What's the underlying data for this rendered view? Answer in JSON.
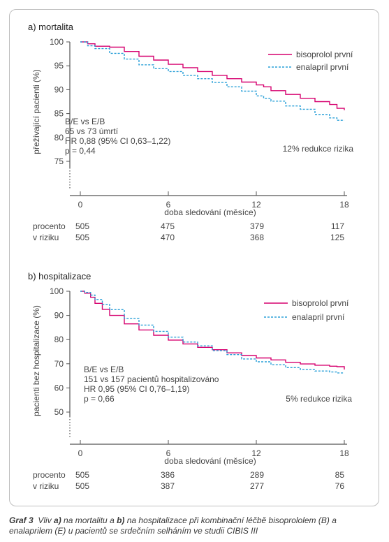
{
  "colors": {
    "bisoprolol": "#d6006f",
    "enalapril": "#2aa0d8",
    "axis": "#555555",
    "frame": "#bfbfbf"
  },
  "caption": {
    "label": "Graf 3",
    "t1": "Vliv ",
    "b1": "a)",
    "t2": " na mortalitu a ",
    "b2": "b)",
    "t3": " na hospitalizace při kombinační léčbě bisoprololem (B) a enalaprilem (E) u pacientů se srdečním selháním ve studii CIBIS III"
  },
  "chart_data": [
    {
      "type": "line",
      "title": "a) mortalita",
      "xlabel": "doba sledování (měsíce)",
      "ylabel": "přežívající pacienti (%)",
      "xlim": [
        0,
        18
      ],
      "ylim": [
        70,
        100
      ],
      "xticks": [
        0,
        6,
        12,
        18
      ],
      "yticks": [
        75,
        80,
        85,
        90,
        95,
        100
      ],
      "legend": "top-right",
      "series": [
        {
          "name": "bisoprolol první",
          "style": "solid",
          "color": "#d6006f",
          "x": [
            0,
            0.5,
            1,
            2,
            3,
            4,
            5,
            6,
            7,
            8,
            9,
            10,
            11,
            12,
            12.5,
            13,
            14,
            15,
            16,
            17,
            17.5,
            18
          ],
          "y": [
            100,
            99.6,
            99.1,
            98.9,
            98.0,
            97.0,
            96.2,
            95.3,
            94.6,
            93.8,
            93.0,
            92.3,
            91.6,
            91.0,
            90.6,
            89.8,
            89.0,
            88.2,
            87.5,
            86.9,
            86.1,
            85.7
          ]
        },
        {
          "name": "enalapril první",
          "style": "dashed",
          "color": "#2aa0d8",
          "x": [
            0,
            0.5,
            1,
            2,
            3,
            4,
            5,
            6,
            7,
            8,
            9,
            10,
            11,
            12,
            12.5,
            13,
            14,
            15,
            16,
            17,
            17.5,
            18
          ],
          "y": [
            100,
            99.2,
            98.6,
            97.6,
            96.4,
            95.2,
            94.4,
            93.8,
            93.0,
            92.3,
            91.5,
            90.6,
            89.7,
            88.7,
            88.2,
            87.6,
            86.6,
            85.9,
            84.8,
            84.1,
            83.6,
            83.6
          ]
        }
      ],
      "annotations": [
        "B/E vs E/B",
        "65 vs 73 úmrtí",
        "HR 0,88 (95% CI 0,63–1,22)",
        "p = 0,44",
        "12% redukce rizika"
      ],
      "risk_table": {
        "label1": "procento",
        "label2": "v riziku",
        "bisoprolol": [
          "505",
          "475",
          "379",
          "117"
        ],
        "enalapril": [
          "505",
          "470",
          "368",
          "125"
        ]
      }
    },
    {
      "type": "line",
      "title": "b) hospitalizace",
      "xlabel": "doba sledování (měsíce)",
      "ylabel": "pacienti bez hospitalizace (%)",
      "xlim": [
        0,
        18
      ],
      "ylim": [
        40,
        100
      ],
      "xticks": [
        0,
        6,
        12,
        18
      ],
      "yticks": [
        50,
        60,
        70,
        80,
        90,
        100
      ],
      "legend": "top-right",
      "series": [
        {
          "name": "bisoprolol první",
          "style": "solid",
          "color": "#d6006f",
          "x": [
            0,
            0.3,
            0.7,
            1,
            1.5,
            2,
            3,
            4,
            5,
            6,
            7,
            8,
            9,
            10,
            11,
            12,
            13,
            14,
            15,
            16,
            17,
            17.5,
            18
          ],
          "y": [
            100,
            99.2,
            97.5,
            95.0,
            92.5,
            90.0,
            86.5,
            84.0,
            81.8,
            79.8,
            78.2,
            76.8,
            75.8,
            74.5,
            73.4,
            72.4,
            71.6,
            70.6,
            69.9,
            69.4,
            69.0,
            68.8,
            67.6
          ]
        },
        {
          "name": "enalapril první",
          "style": "dashed",
          "color": "#2aa0d8",
          "x": [
            0,
            0.3,
            0.7,
            1,
            1.5,
            2,
            3,
            4,
            5,
            6,
            7,
            8,
            9,
            10,
            11,
            12,
            13,
            14,
            15,
            16,
            17,
            17.5,
            18
          ],
          "y": [
            100,
            99.5,
            98.4,
            96.6,
            94.6,
            92.4,
            88.8,
            86.0,
            83.4,
            81.0,
            79.0,
            77.4,
            75.4,
            73.8,
            72.0,
            70.8,
            69.6,
            68.4,
            67.6,
            67.0,
            66.6,
            66.2,
            66.2
          ]
        }
      ],
      "annotations": [
        "B/E vs E/B",
        "151 vs 157 pacientů hospitalizováno",
        "HR 0,95 (95% CI 0,76–1,19)",
        "p = 0,66",
        "5% redukce rizika"
      ],
      "risk_table": {
        "label1": "procento",
        "label2": "v riziku",
        "bisoprolol": [
          "505",
          "386",
          "289",
          "85"
        ],
        "enalapril": [
          "505",
          "387",
          "277",
          "76"
        ]
      }
    }
  ]
}
